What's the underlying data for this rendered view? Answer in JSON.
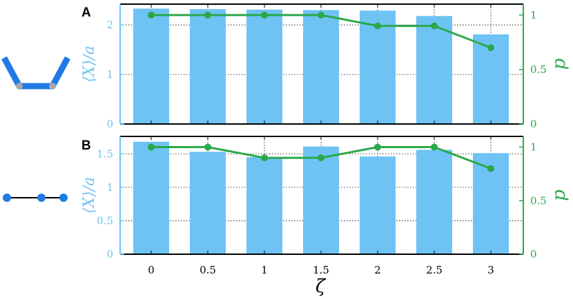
{
  "colors": {
    "bar": "#6ec3f4",
    "line": "#2aa84a",
    "frame": "#000000",
    "icon": "#1f7ae6",
    "joint": "#a8a8a8"
  },
  "chart_data": [
    {
      "type": "bar",
      "panel": "A",
      "xlabel": "",
      "ylabel_left": "⟨X⟩/a",
      "ylabel_right": "p",
      "categories": [
        "0",
        "0.5",
        "1",
        "1.5",
        "2",
        "2.5",
        "3"
      ],
      "ylim_left": [
        0,
        2.42
      ],
      "ylim_right": [
        0,
        1.1
      ],
      "left_ticks": [
        0,
        1,
        2
      ],
      "right_ticks": [
        0,
        0.5,
        1
      ],
      "grid": "dotted",
      "bar_values": [
        2.33,
        2.32,
        2.31,
        2.3,
        2.29,
        2.18,
        1.81
      ],
      "line_values": [
        1.0,
        1.0,
        1.0,
        1.0,
        0.9,
        0.9,
        0.7
      ],
      "icon": "bent-trimer-icon"
    },
    {
      "type": "bar",
      "panel": "B",
      "xlabel": "ζ",
      "ylabel_left": "⟨X⟩/a",
      "ylabel_right": "p",
      "categories": [
        "0",
        "0.5",
        "1",
        "1.5",
        "2",
        "2.5",
        "3"
      ],
      "ylim_left": [
        0,
        1.76
      ],
      "ylim_right": [
        0,
        1.1
      ],
      "left_ticks": [
        0,
        0.5,
        1,
        1.5
      ],
      "left_tick_labels": [
        "0",
        "0.5",
        "1",
        "1.5"
      ],
      "right_ticks": [
        0,
        0.5,
        1
      ],
      "grid": "dotted",
      "bar_values": [
        1.68,
        1.53,
        1.45,
        1.61,
        1.46,
        1.56,
        1.51
      ],
      "line_values": [
        1.0,
        1.0,
        0.9,
        0.9,
        1.0,
        1.0,
        0.8
      ],
      "icon": "linear-trimer-icon"
    }
  ]
}
